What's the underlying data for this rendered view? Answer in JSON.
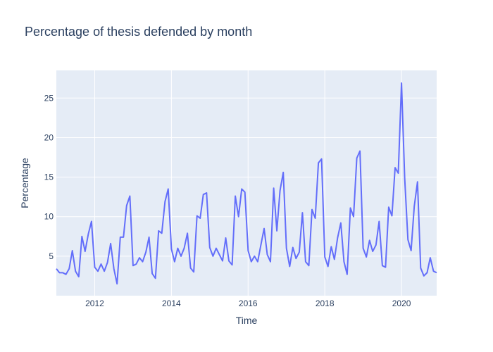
{
  "chart_data": {
    "type": "line",
    "title": "Percentage of thesis defended by month",
    "xlabel": "Time",
    "ylabel": "Percentage",
    "x_range": [
      "2011-01",
      "2020-12"
    ],
    "ylim": [
      0,
      28.5
    ],
    "x_ticks": [
      "2012",
      "2014",
      "2016",
      "2018",
      "2020"
    ],
    "y_ticks": [
      5,
      10,
      15,
      20,
      25
    ],
    "grid": true,
    "colors": {
      "plot_background": "#e5ecf6",
      "series": "#636efa"
    },
    "series": [
      {
        "x": [
          "2011-01",
          "2011-02",
          "2011-03",
          "2011-04",
          "2011-05",
          "2011-06",
          "2011-07",
          "2011-08",
          "2011-09",
          "2011-10",
          "2011-11",
          "2011-12",
          "2012-01",
          "2012-02",
          "2012-03",
          "2012-04",
          "2012-05",
          "2012-06",
          "2012-07",
          "2012-08",
          "2012-09",
          "2012-10",
          "2012-11",
          "2012-12",
          "2013-01",
          "2013-02",
          "2013-03",
          "2013-04",
          "2013-05",
          "2013-06",
          "2013-07",
          "2013-08",
          "2013-09",
          "2013-10",
          "2013-11",
          "2013-12",
          "2014-01",
          "2014-02",
          "2014-03",
          "2014-04",
          "2014-05",
          "2014-06",
          "2014-07",
          "2014-08",
          "2014-09",
          "2014-10",
          "2014-11",
          "2014-12",
          "2015-01",
          "2015-02",
          "2015-03",
          "2015-04",
          "2015-05",
          "2015-06",
          "2015-07",
          "2015-08",
          "2015-09",
          "2015-10",
          "2015-11",
          "2015-12",
          "2016-01",
          "2016-02",
          "2016-03",
          "2016-04",
          "2016-05",
          "2016-06",
          "2016-07",
          "2016-08",
          "2016-09",
          "2016-10",
          "2016-11",
          "2016-12",
          "2017-01",
          "2017-02",
          "2017-03",
          "2017-04",
          "2017-05",
          "2017-06",
          "2017-07",
          "2017-08",
          "2017-09",
          "2017-10",
          "2017-11",
          "2017-12",
          "2018-01",
          "2018-02",
          "2018-03",
          "2018-04",
          "2018-05",
          "2018-06",
          "2018-07",
          "2018-08",
          "2018-09",
          "2018-10",
          "2018-11",
          "2018-12",
          "2019-01",
          "2019-02",
          "2019-03",
          "2019-04",
          "2019-05",
          "2019-06",
          "2019-07",
          "2019-08",
          "2019-09",
          "2019-10",
          "2019-11",
          "2019-12",
          "2020-01",
          "2020-02",
          "2020-03",
          "2020-04",
          "2020-05",
          "2020-06",
          "2020-07",
          "2020-08",
          "2020-09",
          "2020-10",
          "2020-11",
          "2020-12"
        ],
        "y": [
          3.4,
          2.9,
          2.9,
          2.7,
          3.4,
          5.7,
          3.1,
          2.4,
          7.5,
          5.6,
          7.8,
          9.4,
          3.6,
          3.1,
          4.0,
          3.1,
          4.2,
          6.6,
          3.4,
          1.5,
          7.4,
          7.4,
          11.4,
          12.6,
          3.8,
          4.0,
          4.8,
          4.3,
          5.5,
          7.4,
          2.8,
          2.2,
          8.2,
          7.9,
          11.9,
          13.5,
          5.9,
          4.3,
          6.0,
          5.0,
          6.0,
          7.9,
          3.5,
          3.0,
          10.1,
          9.8,
          12.8,
          13.0,
          6.1,
          5.0,
          6.0,
          5.2,
          4.4,
          7.3,
          4.4,
          3.9,
          12.6,
          10.0,
          13.5,
          13.1,
          5.7,
          4.3,
          5.0,
          4.3,
          6.4,
          8.5,
          5.2,
          4.3,
          13.6,
          8.2,
          13.3,
          15.6,
          6.0,
          3.7,
          6.1,
          4.7,
          5.5,
          10.5,
          4.3,
          3.8,
          10.9,
          9.8,
          16.8,
          17.3,
          4.9,
          3.7,
          6.2,
          4.6,
          7.3,
          9.2,
          4.3,
          2.7,
          11.1,
          10.0,
          17.4,
          18.3,
          6.0,
          4.9,
          7.0,
          5.6,
          6.4,
          9.4,
          3.8,
          3.6,
          11.2,
          10.1,
          16.2,
          15.5,
          26.9,
          14.9,
          7.1,
          5.7,
          11.3,
          14.4,
          3.5,
          2.5,
          2.9,
          4.8,
          3.1,
          2.9
        ]
      }
    ]
  }
}
